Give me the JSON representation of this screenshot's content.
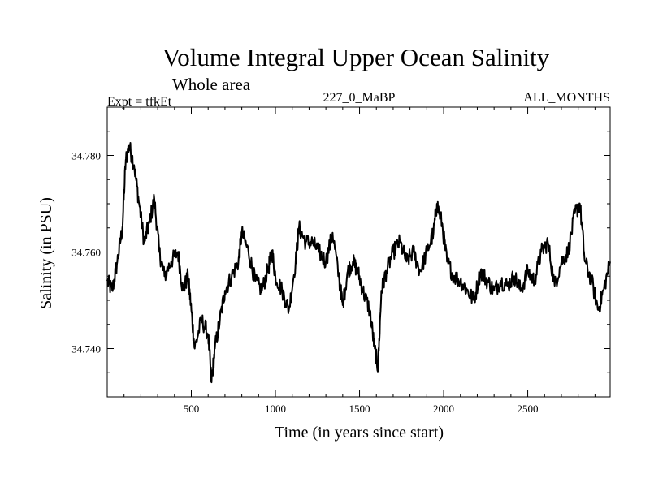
{
  "chart_data": {
    "type": "line",
    "title": "Volume Integral Upper Ocean Salinity",
    "subtitle": "Whole area",
    "left_label": "Expt = tfkEt",
    "center_label": "227_0_MaBP",
    "right_label": "ALL_MONTHS",
    "xlabel": "Time (in years since start)",
    "ylabel": "Salinity (in PSU)",
    "xlim": [
      0,
      2990
    ],
    "ylim": [
      34.73,
      34.79
    ],
    "xticks": [
      500,
      1000,
      1500,
      2000,
      2500
    ],
    "xtick_labels": [
      "500",
      "1000",
      "1500",
      "2000",
      "2500"
    ],
    "yticks": [
      34.74,
      34.76,
      34.78
    ],
    "ytick_labels": [
      "34.740",
      "34.760",
      "34.780"
    ],
    "grid": false,
    "colors": {
      "line": "#000000",
      "axes": "#000000"
    },
    "series": [
      {
        "x": [
          0,
          30,
          60,
          90,
          110,
          130,
          160,
          190,
          220,
          250,
          280,
          310,
          340,
          380,
          420,
          450,
          480,
          500,
          520,
          560,
          600,
          620,
          640,
          670,
          700,
          740,
          780,
          800,
          840,
          880,
          920,
          960,
          980,
          1000,
          1040,
          1080,
          1120,
          1140,
          1180,
          1220,
          1260,
          1300,
          1340,
          1380,
          1400,
          1430,
          1460,
          1490,
          1520,
          1560,
          1590,
          1610,
          1630,
          1660,
          1700,
          1740,
          1780,
          1820,
          1860,
          1900,
          1940,
          1960,
          1990,
          2020,
          2060,
          2100,
          2140,
          2180,
          2220,
          2260,
          2300,
          2340,
          2380,
          2420,
          2460,
          2500,
          2540,
          2580,
          2620,
          2660,
          2700,
          2740,
          2780,
          2810,
          2840,
          2880,
          2920,
          2950,
          2990
        ],
        "y": [
          34.754,
          34.752,
          34.758,
          34.765,
          34.779,
          34.782,
          34.778,
          34.77,
          34.762,
          34.766,
          34.771,
          34.76,
          34.755,
          34.758,
          34.76,
          34.752,
          34.755,
          34.748,
          34.74,
          34.746,
          34.743,
          34.733,
          34.74,
          34.746,
          34.752,
          34.755,
          34.758,
          34.764,
          34.76,
          34.754,
          34.752,
          34.757,
          34.76,
          34.755,
          34.752,
          34.748,
          34.758,
          34.765,
          34.762,
          34.762,
          34.76,
          34.758,
          34.764,
          34.754,
          34.749,
          34.756,
          34.758,
          34.756,
          34.752,
          34.748,
          34.74,
          34.736,
          34.752,
          34.756,
          34.76,
          34.762,
          34.758,
          34.76,
          34.756,
          34.76,
          34.764,
          34.77,
          34.766,
          34.758,
          34.755,
          34.754,
          34.752,
          34.75,
          34.756,
          34.754,
          34.752,
          34.754,
          34.753,
          34.755,
          34.752,
          34.756,
          34.754,
          34.76,
          34.762,
          34.753,
          34.758,
          34.76,
          34.768,
          34.77,
          34.758,
          34.754,
          34.748,
          34.752,
          34.758
        ]
      }
    ]
  }
}
